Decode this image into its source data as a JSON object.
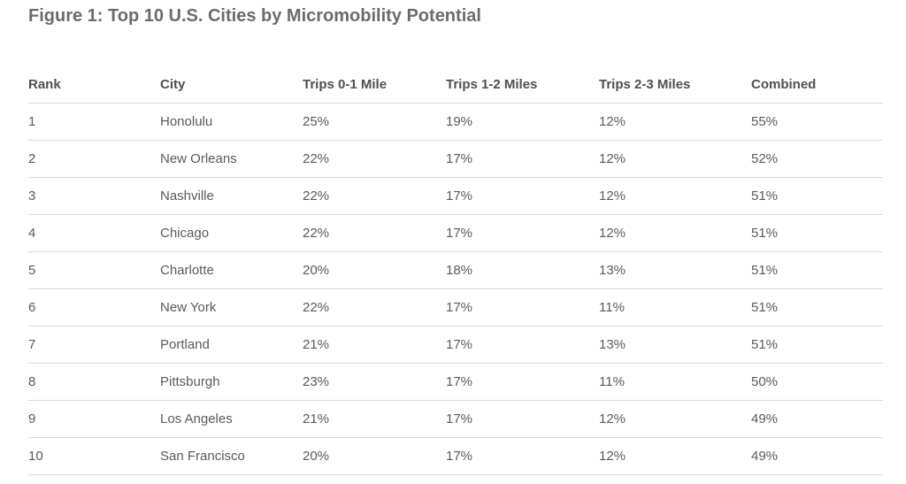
{
  "chart_data": {
    "type": "table",
    "title": "Figure 1: Top 10 U.S. Cities by Micromobility Potential",
    "columns": [
      "Rank",
      "City",
      "Trips 0-1 Mile",
      "Trips 1-2 Miles",
      "Trips 2-3 Miles",
      "Combined"
    ],
    "rows": [
      [
        "1",
        "Honolulu",
        "25%",
        "19%",
        "12%",
        "55%"
      ],
      [
        "2",
        "New Orleans",
        "22%",
        "17%",
        "12%",
        "52%"
      ],
      [
        "3",
        "Nashville",
        "22%",
        "17%",
        "12%",
        "51%"
      ],
      [
        "4",
        "Chicago",
        "22%",
        "17%",
        "12%",
        "51%"
      ],
      [
        "5",
        "Charlotte",
        "20%",
        "18%",
        "13%",
        "51%"
      ],
      [
        "6",
        "New York",
        "22%",
        "17%",
        "11%",
        "51%"
      ],
      [
        "7",
        "Portland",
        "21%",
        "17%",
        "13%",
        "51%"
      ],
      [
        "8",
        "Pittsburgh",
        "23%",
        "17%",
        "11%",
        "50%"
      ],
      [
        "9",
        "Los Angeles",
        "21%",
        "17%",
        "12%",
        "49%"
      ],
      [
        "10",
        "San Francisco",
        "20%",
        "17%",
        "12%",
        "49%"
      ]
    ]
  },
  "colors": {
    "title": "#6b6b6b",
    "header_text": "#4f4f4f",
    "cell_text": "#5a5a5a",
    "rule": "#d9d9d9"
  }
}
